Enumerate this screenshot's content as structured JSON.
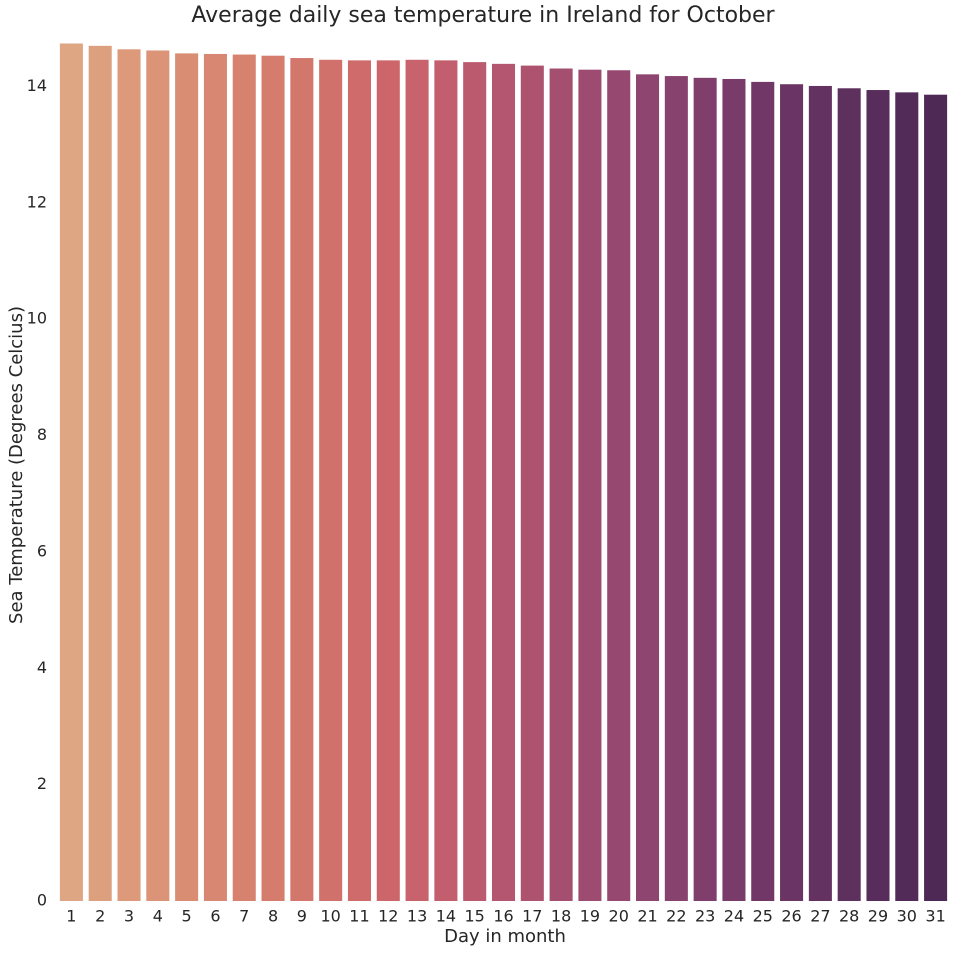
{
  "chart_data": {
    "type": "bar",
    "title": "Average daily sea temperature in Ireland for October",
    "x_label": "Day in month",
    "y_label": "Sea Temperature (Degrees Celcius)",
    "categories": [
      "1",
      "2",
      "3",
      "4",
      "5",
      "6",
      "7",
      "8",
      "9",
      "10",
      "11",
      "12",
      "13",
      "14",
      "15",
      "16",
      "17",
      "18",
      "19",
      "20",
      "21",
      "22",
      "23",
      "24",
      "25",
      "26",
      "27",
      "28",
      "29",
      "30",
      "31"
    ],
    "values": [
      14.74,
      14.7,
      14.64,
      14.62,
      14.57,
      14.56,
      14.55,
      14.53,
      14.49,
      14.46,
      14.45,
      14.45,
      14.46,
      14.45,
      14.42,
      14.39,
      14.36,
      14.31,
      14.29,
      14.28,
      14.21,
      14.18,
      14.15,
      14.13,
      14.08,
      14.04,
      14.01,
      13.97,
      13.94,
      13.9,
      13.86
    ],
    "colors": [
      "#dea683",
      "#dda07e",
      "#dc9a7a",
      "#db9477",
      "#d98e74",
      "#d88872",
      "#d6826f",
      "#d57c6d",
      "#d3776c",
      "#d1716b",
      "#cf6b6b",
      "#cd666b",
      "#c8626c",
      "#c25e6d",
      "#bb5a6e",
      "#b4566f",
      "#ad5370",
      "#a54f70",
      "#9e4b71",
      "#964870",
      "#8e4570",
      "#87426e",
      "#7f3e6c",
      "#783b6a",
      "#713867",
      "#6a3564",
      "#643261",
      "#5e305e",
      "#582d5b",
      "#532b58",
      "#4e2955"
    ],
    "ylim": [
      0,
      14.8
    ],
    "yticks": [
      0,
      2,
      4,
      6,
      8,
      10,
      12,
      14
    ],
    "grid": false
  }
}
